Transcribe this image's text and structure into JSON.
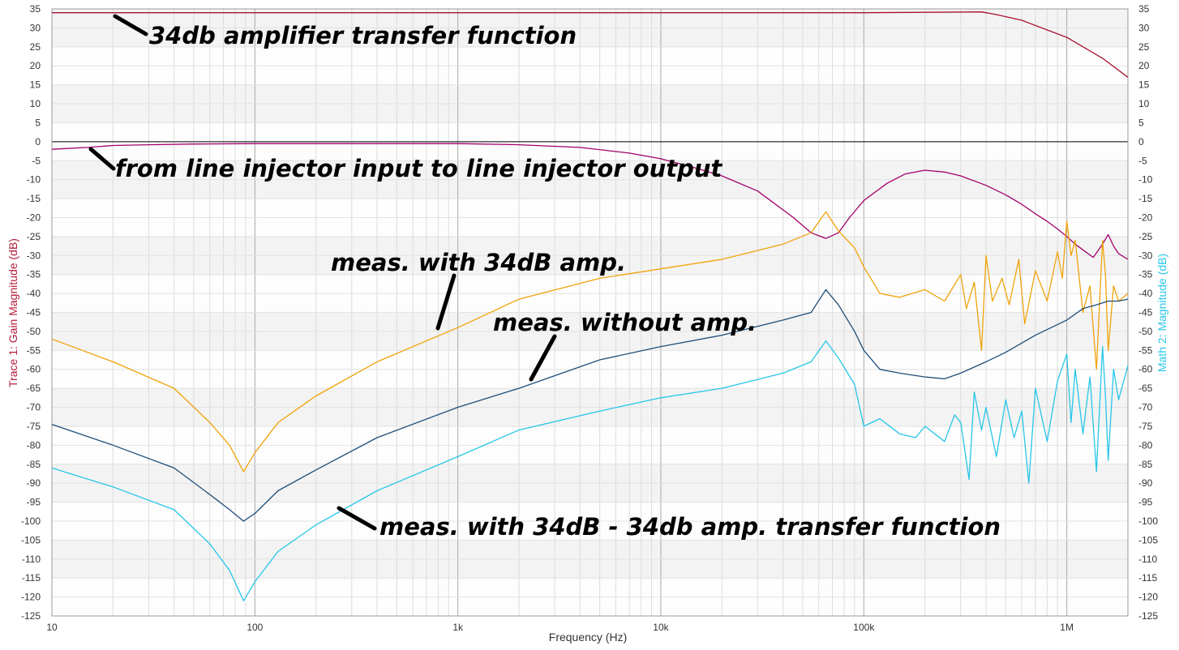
{
  "chart_data": {
    "type": "line",
    "xlabel": "Frequency (Hz)",
    "ylabel_left": "Trace 1: Gain Magnitude (dB)",
    "ylabel_right": "Math 2: Magnitude (dB)",
    "x_scale": "log",
    "xlim": [
      10,
      2000000
    ],
    "ylim": [
      -125,
      35
    ],
    "grid": true,
    "x_ticks": [
      {
        "value": 10,
        "label": "10"
      },
      {
        "value": 100,
        "label": "100"
      },
      {
        "value": 1000,
        "label": "1k"
      },
      {
        "value": 10000,
        "label": "10k"
      },
      {
        "value": 100000,
        "label": "100k"
      },
      {
        "value": 1000000,
        "label": "1M"
      }
    ],
    "y_ticks": [
      35,
      30,
      25,
      20,
      15,
      10,
      5,
      0,
      -5,
      -10,
      -15,
      -20,
      -25,
      -30,
      -35,
      -40,
      -45,
      -50,
      -55,
      -60,
      -65,
      -70,
      -75,
      -80,
      -85,
      -90,
      -95,
      -100,
      -105,
      -110,
      -115,
      -120,
      -125
    ],
    "colors": {
      "amp_tf": "#a8102e",
      "line_injector": "#a1006b",
      "with_amp": "#f0a30a",
      "without_amp": "#1f4e79",
      "compensated": "#26c6e8",
      "left_axis_title": "#b31b3a",
      "right_axis_title": "#26c6e8"
    },
    "series": [
      {
        "id": "amp_tf",
        "x": [
          10,
          100,
          1000,
          10000,
          100000,
          200000,
          380000,
          450000,
          600000,
          1000000,
          1500000,
          2000000
        ],
        "y": [
          34,
          34,
          34,
          34,
          34,
          34.1,
          34.2,
          33.5,
          32,
          27.5,
          22,
          17
        ]
      },
      {
        "id": "line_injector",
        "x": [
          10,
          15,
          20,
          30,
          50,
          100,
          300,
          1000,
          2000,
          4000,
          7000,
          10000,
          15000,
          20000,
          30000,
          45000,
          55000,
          65000,
          75000,
          85000,
          100000,
          130000,
          160000,
          200000,
          250000,
          300000,
          400000,
          500000,
          600000,
          700000,
          800000,
          900000,
          1000000,
          1100000,
          1200000,
          1350000,
          1500000,
          1600000,
          1700000,
          1800000,
          2000000
        ],
        "y": [
          -2,
          -1.5,
          -1,
          -0.8,
          -0.6,
          -0.5,
          -0.5,
          -0.5,
          -0.8,
          -1.5,
          -3,
          -4.5,
          -7,
          -9,
          -13,
          -20,
          -24,
          -25.5,
          -24,
          -20,
          -15.5,
          -11,
          -8.5,
          -7.5,
          -8,
          -9,
          -11.5,
          -14,
          -16.5,
          -19,
          -21,
          -23,
          -25,
          -27,
          -28.5,
          -30.5,
          -27,
          -24.5,
          -27.5,
          -29.5,
          -31
        ]
      },
      {
        "id": "with_amp",
        "x": [
          10,
          20,
          40,
          60,
          75,
          88,
          100,
          130,
          200,
          400,
          1000,
          2000,
          5000,
          10000,
          20000,
          40000,
          55000,
          65000,
          75000,
          90000,
          100000,
          120000,
          150000,
          200000,
          250000,
          300000,
          320000,
          350000,
          380000,
          400000,
          430000,
          480000,
          520000,
          580000,
          620000,
          700000,
          800000,
          900000,
          950000,
          1000000,
          1050000,
          1100000,
          1200000,
          1300000,
          1400000,
          1500000,
          1550000,
          1600000,
          1700000,
          1800000,
          2000000
        ],
        "y": [
          -52,
          -58,
          -65,
          -74,
          -80,
          -87,
          -82,
          -74,
          -67,
          -58,
          -49,
          -41.5,
          -36,
          -33.5,
          -31,
          -27,
          -24,
          -18.5,
          -23.5,
          -28,
          -33,
          -40,
          -41,
          -39,
          -42,
          -35,
          -44,
          -37,
          -55,
          -30,
          -42,
          -36,
          -43,
          -31,
          -48,
          -34,
          -42,
          -29,
          -36,
          -21,
          -30,
          -26,
          -45,
          -38,
          -60,
          -26,
          -35,
          -55,
          -38,
          -42,
          -40
        ]
      },
      {
        "id": "without_amp",
        "x": [
          10,
          20,
          40,
          60,
          75,
          88,
          100,
          130,
          200,
          400,
          1000,
          2000,
          5000,
          10000,
          20000,
          40000,
          55000,
          65000,
          75000,
          90000,
          100000,
          120000,
          150000,
          200000,
          250000,
          300000,
          400000,
          500000,
          700000,
          1000000,
          1200000,
          1400000,
          1600000,
          1800000,
          2000000
        ],
        "y": [
          -74.5,
          -80,
          -86,
          -93,
          -97,
          -100,
          -98,
          -92,
          -86.5,
          -78,
          -70,
          -65,
          -57.5,
          -54,
          -51,
          -47,
          -45,
          -39,
          -43,
          -50,
          -55,
          -60,
          -61,
          -62,
          -62.5,
          -61,
          -58,
          -55.5,
          -51,
          -47,
          -44,
          -43,
          -42,
          -42,
          -41.5
        ]
      },
      {
        "id": "compensated",
        "x": [
          10,
          20,
          40,
          60,
          75,
          88,
          100,
          130,
          200,
          400,
          1000,
          2000,
          5000,
          10000,
          20000,
          40000,
          55000,
          65000,
          75000,
          90000,
          100000,
          120000,
          150000,
          180000,
          200000,
          250000,
          280000,
          300000,
          330000,
          350000,
          380000,
          400000,
          450000,
          500000,
          550000,
          600000,
          650000,
          700000,
          800000,
          900000,
          1000000,
          1050000,
          1100000,
          1200000,
          1300000,
          1400000,
          1500000,
          1550000,
          1600000,
          1700000,
          1800000,
          2000000
        ],
        "y": [
          -86,
          -91,
          -97,
          -106,
          -113,
          -121,
          -116,
          -108,
          -101,
          -92,
          -83,
          -76,
          -71,
          -67.5,
          -65,
          -61,
          -58,
          -52.5,
          -57,
          -64,
          -75,
          -73,
          -77,
          -78,
          -75,
          -79,
          -72,
          -74,
          -89,
          -66,
          -76,
          -70,
          -83,
          -68,
          -78,
          -71,
          -90,
          -65,
          -79,
          -63,
          -56,
          -74,
          -60,
          -77,
          -62,
          -87,
          -54,
          -67,
          -84,
          -60,
          -68,
          -59
        ]
      }
    ],
    "annotations": [
      {
        "text": "34db amplifier transfer function",
        "series": "amp_tf"
      },
      {
        "text": "from line injector input to line injector output",
        "series": "line_injector"
      },
      {
        "text": "meas. with 34dB amp.",
        "series": "with_amp"
      },
      {
        "text": "meas. without amp.",
        "series": "without_amp"
      },
      {
        "text": "meas. with 34dB - 34db amp. transfer function",
        "series": "compensated"
      }
    ]
  }
}
